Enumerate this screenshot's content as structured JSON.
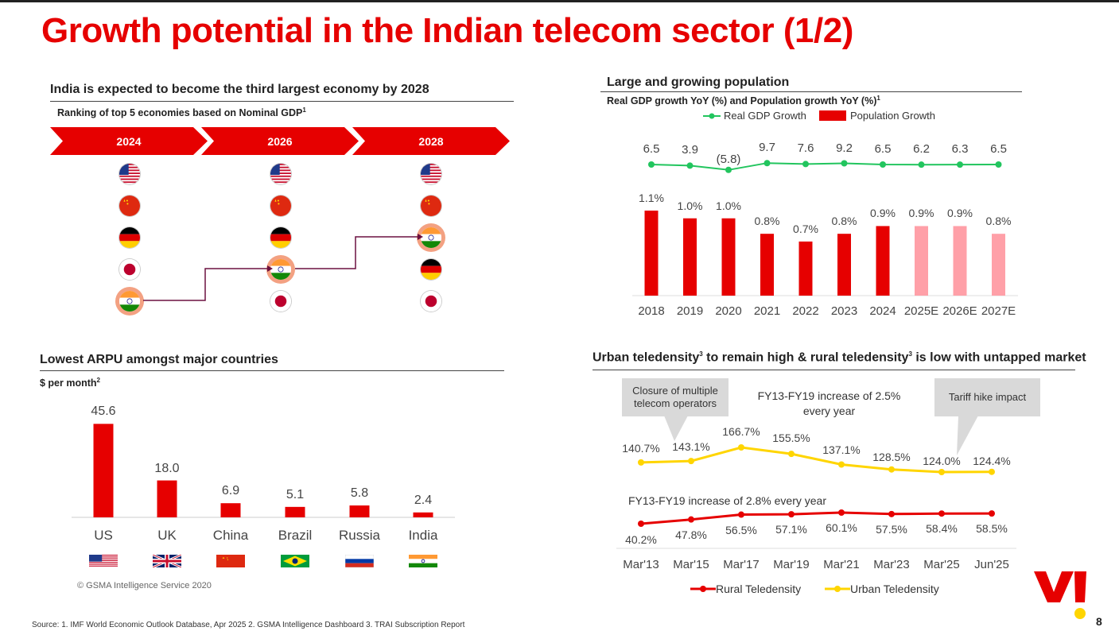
{
  "page": {
    "title": "Growth potential in the Indian telecom sector (1/2)",
    "page_number": "8",
    "source": "Source: 1. IMF World Economic Outlook Database, Apr 2025  2. GSMA Intelligence Dashboard 3. TRAI Subscription Report"
  },
  "colors": {
    "brand_red": "#e60000",
    "light_red": "#ffa0a8",
    "green": "#22c55e",
    "yellow": "#ffd500"
  },
  "economy": {
    "title": "India is expected to become the third largest economy by 2028",
    "subtitle": "Ranking of top 5  economies based on Nominal GDP",
    "subtitle_sup": "1",
    "years": [
      "2024",
      "2026",
      "2028"
    ],
    "rankings": [
      [
        "us-flag",
        "china-flag",
        "germany-flag",
        "japan-flag",
        "india-flag"
      ],
      [
        "us-flag",
        "china-flag",
        "germany-flag",
        "india-flag",
        "japan-flag"
      ],
      [
        "us-flag",
        "china-flag",
        "india-flag",
        "germany-flag",
        "japan-flag"
      ]
    ],
    "highlight_rank": [
      5,
      4,
      3
    ]
  },
  "arpu": {
    "title": "Lowest ARPU amongst major countries",
    "subtitle": "$ per month",
    "subtitle_sup": "2",
    "note": "© GSMA Intelligence Service 2020"
  },
  "population": {
    "title": "Large and growing population",
    "subtitle": "Real GDP growth YoY (%) and Population growth YoY (%)",
    "subtitle_sup": "1",
    "legend_gdp": "Real GDP Growth",
    "legend_pop": "Population Growth"
  },
  "teledensity": {
    "title_a": "Urban teledensity",
    "title_b": " to remain high & rural teledensity",
    "title_c": " is low with untapped market",
    "sup": "3",
    "callout_1": "Closure of multiple telecom operators",
    "callout_2": "Tariff hike impact",
    "anno_urban": "FY13-FY19 increase of 2.5% every year",
    "anno_rural": "FY13-FY19 increase of 2.8% every year",
    "legend_rural": "Rural Teledensity",
    "legend_urban": "Urban Teledensity"
  },
  "chart_data": [
    {
      "type": "bar",
      "title": "Lowest ARPU amongst major countries",
      "ylabel": "$ per month",
      "categories": [
        "US",
        "UK",
        "China",
        "Brazil",
        "Russia",
        "India"
      ],
      "values": [
        45.6,
        18.0,
        6.9,
        5.1,
        5.8,
        2.4
      ],
      "labels": [
        "45.6",
        "18.0",
        "6.9",
        "5.1",
        "5.8",
        "2.4"
      ],
      "flags": [
        "us-flag",
        "uk-flag",
        "china-flag",
        "brazil-flag",
        "russia-flag",
        "india-flag"
      ],
      "ylim": [
        0,
        50
      ]
    },
    {
      "type": "bar",
      "title": "Real GDP growth YoY (%) and Population growth YoY (%)",
      "categories": [
        "2018",
        "2019",
        "2020",
        "2021",
        "2022",
        "2023",
        "2024",
        "2025E",
        "2026E",
        "2027E"
      ],
      "series": [
        {
          "name": "Real GDP Growth",
          "kind": "line",
          "values": [
            6.5,
            3.9,
            -5.8,
            9.7,
            7.6,
            9.2,
            6.5,
            6.2,
            6.3,
            6.5
          ],
          "labels": [
            "6.5",
            "3.9",
            "(5.8)",
            "9.7",
            "7.6",
            "9.2",
            "6.5",
            "6.2",
            "6.3",
            "6.5"
          ]
        },
        {
          "name": "Population Growth",
          "kind": "bar",
          "values": [
            1.1,
            1.0,
            1.0,
            0.8,
            0.7,
            0.8,
            0.9,
            0.9,
            0.9,
            0.8
          ],
          "labels": [
            "1.1%",
            "1.0%",
            "1.0%",
            "0.8%",
            "0.7%",
            "0.8%",
            "0.9%",
            "0.9%",
            "0.9%",
            "0.8%"
          ],
          "estimate_from_index": 7
        }
      ]
    },
    {
      "type": "line",
      "title": "Urban and rural teledensity",
      "categories": [
        "Mar'13",
        "Mar'15",
        "Mar'17",
        "Mar'19",
        "Mar'21",
        "Mar'23",
        "Mar'25",
        "Jun'25"
      ],
      "series": [
        {
          "name": "Urban Teledensity",
          "values": [
            140.7,
            143.1,
            166.7,
            155.5,
            137.1,
            128.5,
            124.0,
            124.4
          ],
          "labels": [
            "140.7%",
            "143.1%",
            "166.7%",
            "155.5%",
            "137.1%",
            "128.5%",
            "124.0%",
            "124.4%"
          ]
        },
        {
          "name": "Rural Teledensity",
          "values": [
            40.2,
            47.8,
            56.5,
            57.1,
            60.1,
            57.5,
            58.4,
            58.5
          ],
          "labels": [
            "40.2%",
            "47.8%",
            "56.5%",
            "57.1%",
            "60.1%",
            "57.5%",
            "58.4%",
            "58.5%"
          ]
        }
      ]
    }
  ]
}
